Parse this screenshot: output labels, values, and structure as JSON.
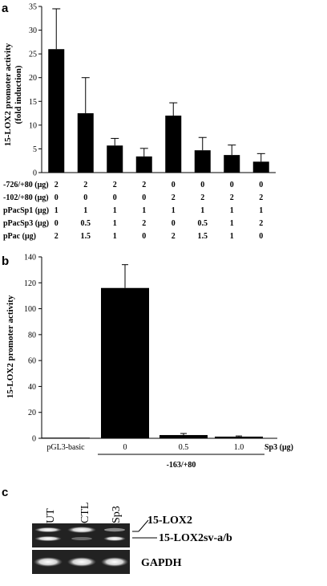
{
  "panels": {
    "a": "a",
    "b": "b",
    "c": "c"
  },
  "chart_data": [
    {
      "type": "bar",
      "panel": "a",
      "ylabel": "15-LOX2 promoter activity (fold induction)",
      "ylabel_lines": [
        "15-LOX2 promoter activity",
        "(fold induction)"
      ],
      "ylim": [
        0,
        35
      ],
      "yticks": [
        0,
        5,
        10,
        15,
        20,
        25,
        30,
        35
      ],
      "values": [
        26,
        12.5,
        5.7,
        3.4,
        12,
        4.7,
        3.7,
        2.3
      ],
      "errors": [
        8.5,
        7.5,
        1.5,
        1.7,
        2.7,
        2.7,
        2.1,
        1.7
      ],
      "condition_rows": [
        {
          "label": "-726/+80 (μg)",
          "values": [
            "2",
            "2",
            "2",
            "2",
            "0",
            "0",
            "0",
            "0"
          ]
        },
        {
          "label": "-102/+80 (μg)",
          "values": [
            "0",
            "0",
            "0",
            "0",
            "2",
            "2",
            "2",
            "2"
          ]
        },
        {
          "label": "pPacSp1 (μg)",
          "values": [
            "1",
            "1",
            "1",
            "1",
            "1",
            "1",
            "1",
            "1"
          ]
        },
        {
          "label": "pPacSp3 (μg)",
          "values": [
            "0",
            "0.5",
            "1",
            "2",
            "0",
            "0.5",
            "1",
            "2"
          ]
        },
        {
          "label": "pPac (μg)",
          "values": [
            "2",
            "1.5",
            "1",
            "0",
            "2",
            "1.5",
            "1",
            "0"
          ]
        }
      ],
      "bar_color": "#000000"
    },
    {
      "type": "bar",
      "panel": "b",
      "ylabel": "15-LOX2 promoter activity",
      "ylim": [
        0,
        140
      ],
      "yticks": [
        0,
        20,
        40,
        60,
        80,
        100,
        120,
        140
      ],
      "categories": [
        "pGL3-basic",
        "0",
        "0.5",
        "1.0"
      ],
      "values": [
        0.5,
        116,
        2.5,
        1.3
      ],
      "errors": [
        0,
        18,
        1.2,
        0.5
      ],
      "x_unit_label": "Sp3 (μg)",
      "group_label": "-163/+80",
      "bar_color": "#000000"
    }
  ],
  "gel": {
    "lanes": [
      "UT",
      "CTL",
      "Sp3"
    ],
    "band_labels": [
      "15-LOX2",
      "15-LOX2sv-a/b"
    ],
    "loading_control": "GAPDH"
  }
}
